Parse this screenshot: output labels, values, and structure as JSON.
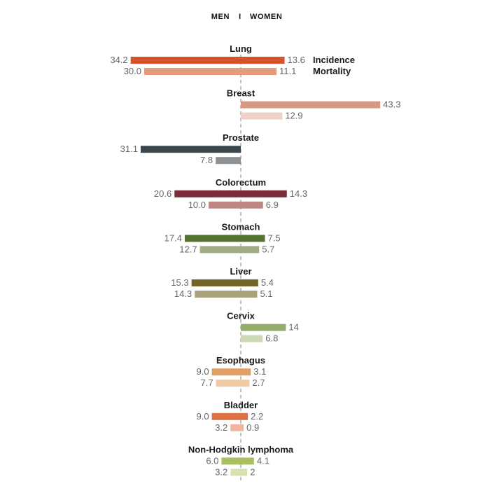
{
  "header": {
    "men": "MEN",
    "separator": "I",
    "women": "WOMEN"
  },
  "legend": {
    "incidence": "Incidence",
    "mortality": "Mortality"
  },
  "chart_data": {
    "type": "bar",
    "orientation": "horizontal-diverging",
    "center_line": "dashed",
    "categories": [
      "Lung",
      "Breast",
      "Prostate",
      "Colorectum",
      "Stomach",
      "Liver",
      "Cervix",
      "Esophagus",
      "Bladder",
      "Non-Hodgkin lymphoma"
    ],
    "series": [
      {
        "name": "Incidence",
        "men": [
          "34.2",
          null,
          "31.1",
          "20.6",
          "17.4",
          "15.3",
          null,
          "9.0",
          "9.0",
          "6.0"
        ],
        "women": [
          "13.6",
          "43.3",
          null,
          "14.3",
          "7.5",
          "5.4",
          "14",
          "3.1",
          "2.2",
          "4.1"
        ]
      },
      {
        "name": "Mortality",
        "men": [
          "30.0",
          null,
          "7.8",
          "10.0",
          "12.7",
          "14.3",
          null,
          "7.7",
          "3.2",
          "3.2"
        ],
        "women": [
          "11.1",
          "12.9",
          null,
          "6.9",
          "5.7",
          "5.1",
          "6.8",
          "2.7",
          "0.9",
          "2"
        ]
      }
    ],
    "colors": {
      "incidence": [
        "#d5532b",
        "#d99884",
        "#3a484d",
        "#7b2c3b",
        "#577333",
        "#726628",
        "#93ab6b",
        "#e1a063",
        "#df7245",
        "#a9bf61"
      ],
      "mortality": [
        "#e49c7f",
        "#efd0c7",
        "#8e9295",
        "#bf8784",
        "#a2ac82",
        "#a8a27b",
        "#ccd9b4",
        "#f1c9a3",
        "#f1b49f",
        "#d6e2b0"
      ]
    }
  }
}
